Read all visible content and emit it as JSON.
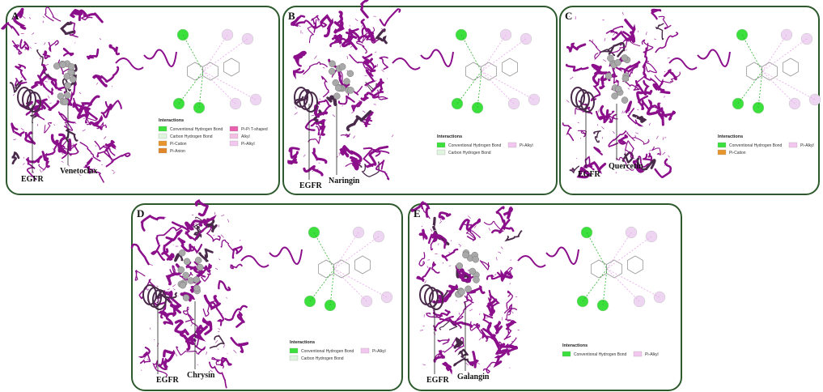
{
  "panels": [
    {
      "letter": "A",
      "protein": "EGFR",
      "ligand": "Venetoclax",
      "legend_title": "Interactions",
      "legend": [
        {
          "label": "Conventional Hydrogen Bond",
          "color": "#3ce03c"
        },
        {
          "label": "Carbon Hydrogen Bond",
          "color": "#dff5df"
        },
        {
          "label": "Pi-Cation",
          "color": "#e8952e"
        },
        {
          "label": "Pi-Anion",
          "color": "#e2862a"
        },
        {
          "label": "Pi-Pi T-shaped",
          "color": "#e860ad"
        },
        {
          "label": "Alkyl",
          "color": "#f3bfe3"
        },
        {
          "label": "Pi-Alkyl",
          "color": "#f3c6f0"
        }
      ]
    },
    {
      "letter": "B",
      "protein": "EGFR",
      "ligand": "Naringin",
      "legend_title": "Interactions",
      "legend": [
        {
          "label": "Conventional Hydrogen Bond",
          "color": "#3ce03c"
        },
        {
          "label": "Carbon Hydrogen Bond",
          "color": "#dff5df"
        },
        {
          "label": "Pi-Alkyl",
          "color": "#f3c6f0"
        }
      ]
    },
    {
      "letter": "C",
      "protein": "EGFR",
      "ligand": "Quercetin",
      "legend_title": "Interactions",
      "legend": [
        {
          "label": "Conventional Hydrogen Bond",
          "color": "#3ce03c"
        },
        {
          "label": "Pi-Cation",
          "color": "#e8952e"
        },
        {
          "label": "Pi-Alkyl",
          "color": "#f3c6f0"
        }
      ]
    },
    {
      "letter": "D",
      "protein": "EGFR",
      "ligand": "Chrysin",
      "legend_title": "Interactions",
      "legend": [
        {
          "label": "Conventional Hydrogen Bond",
          "color": "#3ce03c"
        },
        {
          "label": "Carbon Hydrogen Bond",
          "color": "#dff5df"
        },
        {
          "label": "Pi-Alkyl",
          "color": "#f3c6f0"
        }
      ]
    },
    {
      "letter": "E",
      "protein": "EGFR",
      "ligand": "Galangin",
      "legend_title": "Interactions",
      "legend": [
        {
          "label": "Conventional Hydrogen Bond",
          "color": "#3ce03c"
        },
        {
          "label": "Pi-Alkyl",
          "color": "#f3c6f0"
        }
      ]
    }
  ]
}
